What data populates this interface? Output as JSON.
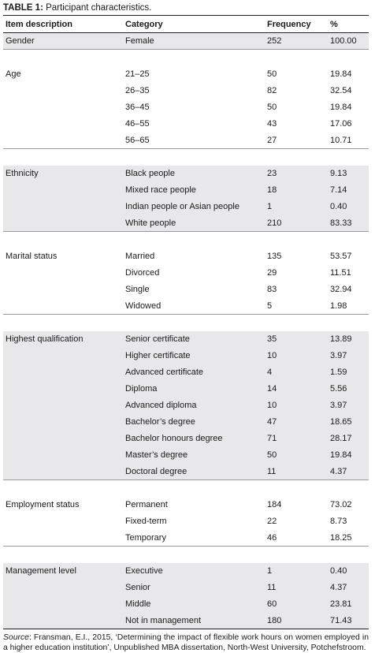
{
  "caption": {
    "label": "TABLE 1:",
    "text": " Participant characteristics."
  },
  "headers": [
    "Item description",
    "Category",
    "Frequency",
    "%"
  ],
  "groups": [
    {
      "name": "Gender",
      "rows": [
        [
          "Female",
          "252",
          "100.00"
        ]
      ]
    },
    {
      "name": "Age",
      "rows": [
        [
          "21–25",
          "50",
          "19.84"
        ],
        [
          "26–35",
          "82",
          "32.54"
        ],
        [
          "36–45",
          "50",
          "19.84"
        ],
        [
          "46–55",
          "43",
          "17.06"
        ],
        [
          "56–65",
          "27",
          "10.71"
        ]
      ]
    },
    {
      "name": "Ethnicity",
      "rows": [
        [
          "Black people",
          "23",
          "9.13"
        ],
        [
          "Mixed race people",
          "18",
          "7.14"
        ],
        [
          "Indian people or Asian people",
          "1",
          "0.40"
        ],
        [
          "White people",
          "210",
          "83.33"
        ]
      ]
    },
    {
      "name": "Marital status",
      "rows": [
        [
          "Married",
          "135",
          "53.57"
        ],
        [
          "Divorced",
          "29",
          "11.51"
        ],
        [
          "Single",
          "83",
          "32.94"
        ],
        [
          "Widowed",
          "5",
          "1.98"
        ]
      ]
    },
    {
      "name": "Highest qualification",
      "rows": [
        [
          "Senior certificate",
          "35",
          "13.89"
        ],
        [
          "Higher certificate",
          "10",
          "3.97"
        ],
        [
          "Advanced certificate",
          "4",
          "1.59"
        ],
        [
          "Diploma",
          "14",
          "5.56"
        ],
        [
          "Advanced diploma",
          "10",
          "3.97"
        ],
        [
          "Bachelor’s degree",
          "47",
          "18.65"
        ],
        [
          "Bachelor honours degree",
          "71",
          "28.17"
        ],
        [
          "Master’s degree",
          "50",
          "19.84"
        ],
        [
          "Doctoral degree",
          "11",
          "4.37"
        ]
      ]
    },
    {
      "name": "Employment status",
      "rows": [
        [
          "Permanent",
          "184",
          "73.02"
        ],
        [
          "Fixed-term",
          "22",
          "8.73"
        ],
        [
          "Temporary",
          "46",
          "18.25"
        ]
      ]
    },
    {
      "name": "Management level",
      "rows": [
        [
          "Executive",
          "1",
          "0.40"
        ],
        [
          "Senior",
          "11",
          "4.37"
        ],
        [
          "Middle",
          "60",
          "23.81"
        ],
        [
          "Not in management",
          "180",
          "71.43"
        ]
      ]
    }
  ],
  "source": {
    "label": "Source",
    "text": ": Fransman, E.I., 2015, ‘Determining the impact of flexible work hours on women employed in a higher education institution’, Unpublished MBA dissertation, North-West University, Potchefstroom."
  }
}
